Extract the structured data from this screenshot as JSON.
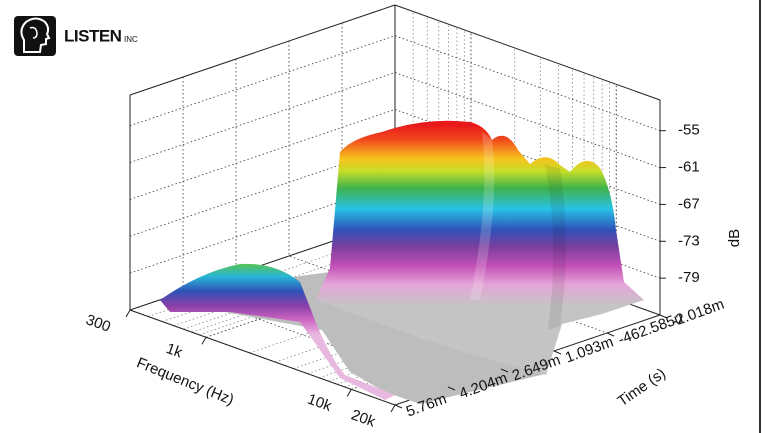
{
  "logo": {
    "brand": "LISTEN",
    "suffix": "INC"
  },
  "chart_data": {
    "type": "waterfall",
    "xlabel": "Frequency (Hz)",
    "ylabel": "Time (s)",
    "zlabel": "dB",
    "log_x": true,
    "xlim": [
      300,
      20000
    ],
    "xticks": [
      300,
      {
        "value": 1000,
        "label": "1k"
      },
      {
        "value": 10000,
        "label": "10k"
      },
      {
        "value": 20000,
        "label": "20k"
      }
    ],
    "ylim": [
      -0.002018,
      0.00576
    ],
    "yticks": [
      {
        "value": -0.002018,
        "label": "-2.018m"
      },
      {
        "value": -0.000462585,
        "label": "-462.585u"
      },
      {
        "value": 0.001093,
        "label": "1.093m"
      },
      {
        "value": 0.002649,
        "label": "2.649m"
      },
      {
        "value": 0.004204,
        "label": "4.204m"
      },
      {
        "value": 0.00576,
        "label": "5.76m"
      }
    ],
    "zlim": [
      -85,
      -50
    ],
    "zticks": [
      -55,
      -61,
      -67,
      -73,
      -79
    ],
    "grid": true
  }
}
